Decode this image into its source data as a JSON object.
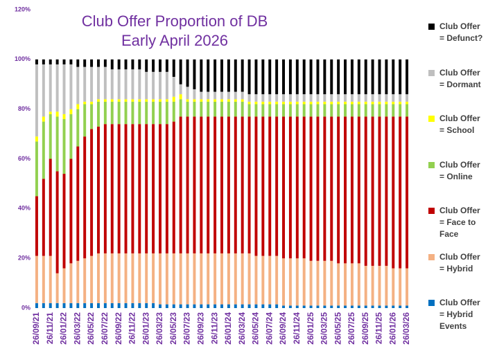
{
  "chart_data": {
    "type": "stacked_bar",
    "title": "Club Offer Proportion of DB",
    "subtitle": "Early April 2026",
    "categories": [
      "26/09/21",
      null,
      "26/11/21",
      null,
      "26/01/22",
      null,
      "26/03/22",
      null,
      "26/05/22",
      null,
      "26/07/22",
      null,
      "26/09/22",
      null,
      "26/11/22",
      null,
      "26/01/23",
      null,
      "26/03/23",
      null,
      "26/05/23",
      null,
      "26/07/23",
      null,
      "26/09/23",
      null,
      "26/11/23",
      null,
      "26/01/24",
      null,
      "26/03/24",
      null,
      "26/05/24",
      null,
      "26/07/24",
      null,
      "26/09/24",
      null,
      "26/11/24",
      null,
      "26/01/25",
      null,
      "26/03/25",
      null,
      "26/05/25",
      null,
      "26/07/25",
      null,
      "26/09/25",
      null,
      "26/11/25",
      null,
      "26/01/26",
      null,
      "26/03/26"
    ],
    "series": [
      {
        "name": "Club Offer = Hybrid Events",
        "color": "#0070c0",
        "values": [
          2,
          2,
          2,
          2,
          2,
          2,
          2,
          2,
          2,
          2,
          2,
          2,
          2,
          2,
          2,
          2,
          2,
          2,
          1.5,
          1.5,
          1.5,
          1.5,
          1.5,
          1.5,
          1.5,
          1.5,
          1.5,
          1.5,
          1.5,
          1.5,
          1.5,
          1.5,
          1.5,
          1.5,
          1.5,
          1.5,
          1,
          1,
          1,
          1,
          1,
          1,
          1,
          1,
          1,
          1,
          1,
          1,
          1,
          1,
          1,
          1,
          1,
          1,
          1
        ]
      },
      {
        "name": "Club Offer = Hybrid",
        "color": "#f4b183",
        "values": [
          19,
          19,
          19,
          12,
          14,
          16,
          17,
          18,
          19,
          20,
          20,
          20,
          20,
          20,
          20,
          20,
          20,
          20,
          20.5,
          20.5,
          20.5,
          20.5,
          20.5,
          20.5,
          20.5,
          20.5,
          20.5,
          20.5,
          20.5,
          20.5,
          20.5,
          20.5,
          19.5,
          19.5,
          19.5,
          19.5,
          19,
          19,
          19,
          19,
          18,
          18,
          18,
          18,
          17,
          17,
          17,
          17,
          16,
          16,
          16,
          16,
          15,
          15,
          15
        ]
      },
      {
        "name": "Club Offer = Face to Face",
        "color": "#c00000",
        "values": [
          24,
          31,
          39,
          41,
          38,
          42,
          46,
          49,
          51,
          51,
          52,
          52,
          52,
          52,
          52,
          52,
          52,
          52,
          52,
          52,
          53,
          55,
          55,
          55,
          55,
          55,
          55,
          55,
          55,
          55,
          55,
          55,
          56,
          56,
          56,
          56,
          57,
          57,
          57,
          57,
          58,
          58,
          58,
          58,
          59,
          59,
          59,
          59,
          60,
          60,
          60,
          60,
          61,
          61,
          61
        ]
      },
      {
        "name": "Club Offer = Online",
        "color": "#92d050",
        "values": [
          22,
          23,
          18,
          22,
          22,
          18,
          15,
          13,
          10,
          10,
          9,
          9,
          9,
          9,
          9,
          9,
          9,
          9,
          9,
          9,
          8,
          7,
          6,
          6,
          6,
          6,
          6,
          6,
          6,
          6,
          6,
          5,
          5,
          5,
          5,
          5,
          5,
          5,
          5,
          5,
          5,
          5,
          5,
          5,
          5,
          5,
          5,
          5,
          5,
          5,
          5,
          5,
          5,
          5,
          5
        ]
      },
      {
        "name": "Club Offer = School",
        "color": "#ffff00",
        "values": [
          2,
          2,
          1,
          2,
          2,
          2,
          2,
          1,
          1,
          1,
          1,
          1,
          1,
          1,
          1,
          1,
          1,
          1,
          1,
          1,
          2,
          2,
          1,
          1,
          1,
          1,
          1,
          1,
          1,
          1,
          1,
          1,
          1,
          1,
          1,
          1,
          1,
          1,
          1,
          1,
          1,
          1,
          1,
          1,
          1,
          1,
          1,
          1,
          1,
          1,
          1,
          1,
          1,
          1,
          1
        ]
      },
      {
        "name": "Club Offer = Dormant",
        "color": "#bfbfbf",
        "values": [
          29,
          21,
          19,
          19,
          20,
          18,
          15,
          14,
          14,
          13,
          13,
          12,
          12,
          12,
          12,
          12,
          11,
          11,
          11,
          11,
          8,
          4,
          5,
          4,
          3,
          3,
          3,
          3,
          3,
          3,
          3,
          3,
          3,
          3,
          3,
          3,
          3,
          3,
          3,
          3,
          3,
          3,
          3,
          3,
          3,
          3,
          3,
          3,
          3,
          3,
          3,
          3,
          3,
          3,
          3
        ]
      },
      {
        "name": "Club Offer = Defunct?",
        "color": "#000000",
        "values": [
          2,
          2,
          2,
          2,
          2,
          2,
          3,
          3,
          3,
          3,
          3,
          4,
          4,
          4,
          4,
          4,
          5,
          5,
          5,
          5,
          7,
          10,
          11,
          12,
          13,
          13,
          13,
          13,
          13,
          13,
          13,
          14,
          14,
          14,
          14,
          14,
          14,
          14,
          14,
          14,
          14,
          14,
          14,
          14,
          14,
          14,
          14,
          14,
          14,
          14,
          14,
          14,
          14,
          14,
          14
        ]
      }
    ],
    "ylim": [
      0,
      120
    ],
    "yticks": [
      {
        "value": 0,
        "label": "0%"
      },
      {
        "value": 20,
        "label": "20%"
      },
      {
        "value": 40,
        "label": "40%"
      },
      {
        "value": 60,
        "label": "60%"
      },
      {
        "value": 80,
        "label": "80%"
      },
      {
        "value": 100,
        "label": "100%"
      },
      {
        "value": 120,
        "label": "120%"
      }
    ],
    "legend": "right"
  }
}
